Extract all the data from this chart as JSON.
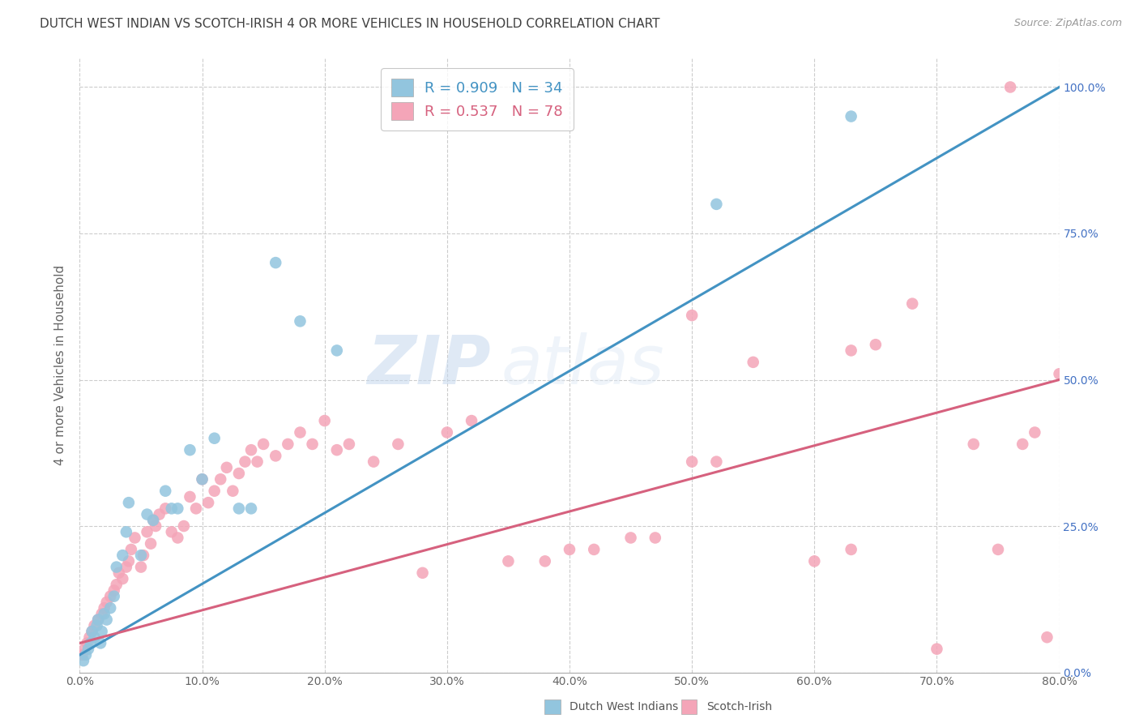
{
  "title": "DUTCH WEST INDIAN VS SCOTCH-IRISH 4 OR MORE VEHICLES IN HOUSEHOLD CORRELATION CHART",
  "source": "Source: ZipAtlas.com",
  "ylabel": "4 or more Vehicles in Household",
  "xlim": [
    0.0,
    80.0
  ],
  "ylim": [
    0.0,
    105.0
  ],
  "blue_R": 0.909,
  "blue_N": 34,
  "pink_R": 0.537,
  "pink_N": 78,
  "blue_color": "#92c5de",
  "blue_line_color": "#4393c3",
  "pink_color": "#f4a5b8",
  "pink_line_color": "#d6617e",
  "legend_blue_label": "Dutch West Indians",
  "legend_pink_label": "Scotch-Irish",
  "watermark_zip": "ZIP",
  "watermark_atlas": "atlas",
  "background_color": "#ffffff",
  "grid_color": "#cccccc",
  "right_axis_color": "#4472c4",
  "title_color": "#404040",
  "blue_scatter_x": [
    0.3,
    0.5,
    0.7,
    0.9,
    1.0,
    1.2,
    1.4,
    1.5,
    1.7,
    1.8,
    2.0,
    2.2,
    2.5,
    2.8,
    3.0,
    3.5,
    3.8,
    4.0,
    5.0,
    5.5,
    6.0,
    7.0,
    7.5,
    8.0,
    9.0,
    10.0,
    11.0,
    13.0,
    14.0,
    16.0,
    18.0,
    21.0,
    52.0,
    63.0
  ],
  "blue_scatter_y": [
    2.0,
    3.0,
    4.0,
    5.0,
    7.0,
    6.0,
    8.0,
    9.0,
    5.0,
    7.0,
    10.0,
    9.0,
    11.0,
    13.0,
    18.0,
    20.0,
    24.0,
    29.0,
    20.0,
    27.0,
    26.0,
    31.0,
    28.0,
    28.0,
    38.0,
    33.0,
    40.0,
    28.0,
    28.0,
    70.0,
    60.0,
    55.0,
    80.0,
    95.0
  ],
  "pink_scatter_x": [
    0.2,
    0.4,
    0.6,
    0.8,
    1.0,
    1.2,
    1.5,
    1.8,
    2.0,
    2.2,
    2.5,
    2.8,
    3.0,
    3.2,
    3.5,
    3.8,
    4.0,
    4.2,
    4.5,
    5.0,
    5.2,
    5.5,
    5.8,
    6.0,
    6.2,
    6.5,
    7.0,
    7.5,
    8.0,
    8.5,
    9.0,
    9.5,
    10.0,
    10.5,
    11.0,
    11.5,
    12.0,
    12.5,
    13.0,
    13.5,
    14.0,
    14.5,
    15.0,
    16.0,
    17.0,
    18.0,
    19.0,
    20.0,
    21.0,
    22.0,
    24.0,
    26.0,
    28.0,
    30.0,
    32.0,
    35.0,
    38.0,
    40.0,
    42.0,
    45.0,
    47.0,
    50.0,
    52.0,
    55.0,
    60.0,
    63.0,
    65.0,
    68.0,
    70.0,
    73.0,
    75.0,
    77.0,
    78.0,
    79.0,
    80.0,
    50.0,
    63.0,
    76.0
  ],
  "pink_scatter_y": [
    3.0,
    4.0,
    5.0,
    6.0,
    7.0,
    8.0,
    9.0,
    10.0,
    11.0,
    12.0,
    13.0,
    14.0,
    15.0,
    17.0,
    16.0,
    18.0,
    19.0,
    21.0,
    23.0,
    18.0,
    20.0,
    24.0,
    22.0,
    26.0,
    25.0,
    27.0,
    28.0,
    24.0,
    23.0,
    25.0,
    30.0,
    28.0,
    33.0,
    29.0,
    31.0,
    33.0,
    35.0,
    31.0,
    34.0,
    36.0,
    38.0,
    36.0,
    39.0,
    37.0,
    39.0,
    41.0,
    39.0,
    43.0,
    38.0,
    39.0,
    36.0,
    39.0,
    17.0,
    41.0,
    43.0,
    19.0,
    19.0,
    21.0,
    21.0,
    23.0,
    23.0,
    61.0,
    36.0,
    53.0,
    19.0,
    21.0,
    56.0,
    63.0,
    4.0,
    39.0,
    21.0,
    39.0,
    41.0,
    6.0,
    51.0,
    36.0,
    55.0,
    100.0
  ]
}
